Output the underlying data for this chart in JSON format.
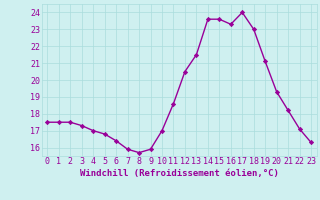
{
  "x": [
    0,
    1,
    2,
    3,
    4,
    5,
    6,
    7,
    8,
    9,
    10,
    11,
    12,
    13,
    14,
    15,
    16,
    17,
    18,
    19,
    20,
    21,
    22,
    23
  ],
  "y": [
    17.5,
    17.5,
    17.5,
    17.3,
    17.0,
    16.8,
    16.4,
    15.9,
    15.7,
    15.9,
    17.0,
    18.6,
    20.5,
    21.5,
    23.6,
    23.6,
    23.3,
    24.0,
    23.0,
    21.1,
    19.3,
    18.2,
    17.1,
    16.3
  ],
  "line_color": "#990099",
  "marker": "D",
  "marker_size": 2.2,
  "bg_color": "#cff0f0",
  "grid_color": "#aadddd",
  "xlabel": "Windchill (Refroidissement éolien,°C)",
  "ylim": [
    15.5,
    24.5
  ],
  "xlim": [
    -0.5,
    23.5
  ],
  "yticks": [
    16,
    17,
    18,
    19,
    20,
    21,
    22,
    23,
    24
  ],
  "xticks": [
    0,
    1,
    2,
    3,
    4,
    5,
    6,
    7,
    8,
    9,
    10,
    11,
    12,
    13,
    14,
    15,
    16,
    17,
    18,
    19,
    20,
    21,
    22,
    23
  ],
  "tick_color": "#990099",
  "label_fontsize": 6.5,
  "tick_fontsize": 6.0,
  "line_width": 1.0
}
